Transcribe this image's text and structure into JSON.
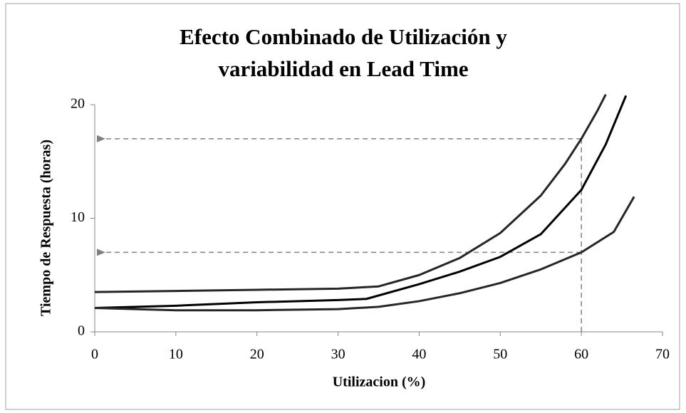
{
  "chart_data": {
    "type": "line",
    "title": "Efecto Combinado de Utilización y",
    "title_line2": "variabilidad  en Lead Time",
    "xlabel": "Utilizacion (%)",
    "ylabel": "Tiempo de Respuesta (horas)",
    "xlim": [
      0,
      70
    ],
    "ylim": [
      0,
      20
    ],
    "xticks": [
      0,
      10,
      20,
      30,
      40,
      50,
      60,
      70
    ],
    "yticks": [
      0,
      10,
      20
    ],
    "grid": false,
    "series": [
      {
        "color": "#262626",
        "x": [
          0,
          10,
          20,
          30,
          35,
          40,
          45,
          50,
          55,
          58,
          60,
          62,
          63
        ],
        "values": [
          3.5,
          3.6,
          3.7,
          3.8,
          4.0,
          5.0,
          6.5,
          8.7,
          12,
          14.8,
          17,
          19.5,
          20.9
        ]
      },
      {
        "color": "#000000",
        "x": [
          0,
          10,
          20,
          30,
          33.5,
          40,
          45,
          50,
          55,
          60,
          63,
          65.5
        ],
        "values": [
          2.1,
          2.3,
          2.6,
          2.8,
          2.9,
          4.2,
          5.3,
          6.6,
          8.6,
          12.5,
          16.5,
          20.8
        ]
      },
      {
        "color": "#262626",
        "x": [
          0,
          10,
          20,
          30,
          35,
          40,
          45,
          50,
          55,
          60,
          64,
          66.5
        ],
        "values": [
          2.1,
          1.9,
          1.9,
          2.0,
          2.2,
          2.7,
          3.4,
          4.3,
          5.5,
          7.0,
          8.8,
          11.9
        ]
      }
    ],
    "hlines": [
      17,
      7
    ],
    "vlines": [
      60
    ],
    "reference_color": "#808080"
  }
}
